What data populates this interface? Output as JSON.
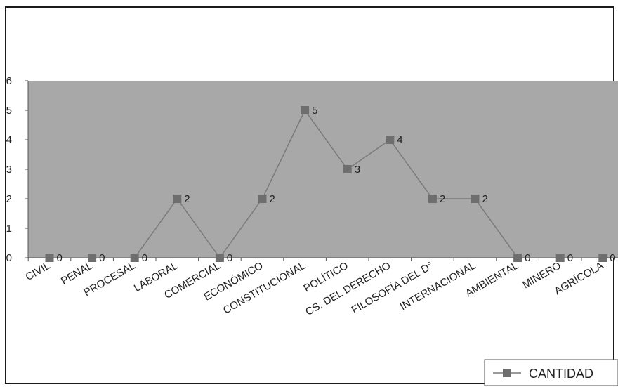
{
  "chart_data": {
    "type": "line",
    "title": "",
    "xlabel": "",
    "ylabel": "",
    "categories": [
      "CIVIL",
      "PENAL",
      "PROCESAL",
      "LABORAL",
      "COMERCIAL",
      "ECONÓMICO",
      "CONSTITUCIONAL",
      "POLÍTICO",
      "CS. DEL DERECHO",
      "FILOSOFÍA DEL D°",
      "INTERNACIONAL",
      "AMBIENTAL",
      "MINERO",
      "AGRÍCOLA"
    ],
    "series": [
      {
        "name": "CANTIDAD",
        "values": [
          0,
          0,
          0,
          2,
          0,
          2,
          5,
          3,
          4,
          2,
          2,
          0,
          0,
          0
        ]
      }
    ],
    "ylim": [
      0,
      6
    ],
    "yticks": [
      0,
      1,
      2,
      3,
      4,
      5,
      6
    ],
    "grid": false,
    "data_labels": true,
    "legend_position": "bottom-right",
    "colors": {
      "plot_background": "#a8a8a8",
      "line": "#7a7a7a",
      "marker": "#6e6e6e",
      "text": "#222222"
    }
  }
}
